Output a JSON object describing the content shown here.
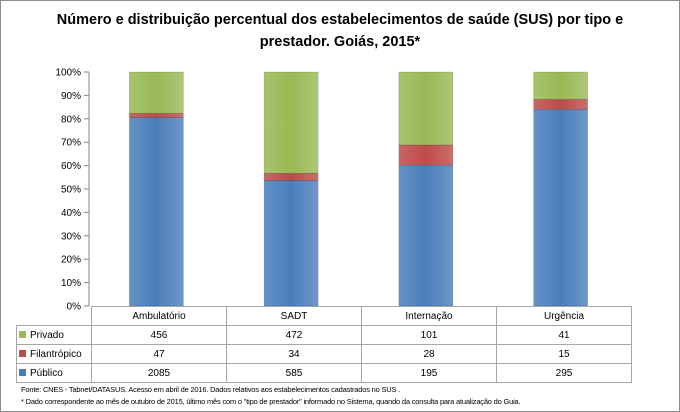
{
  "chart_data": {
    "type": "bar",
    "stacked": "percent",
    "title_line1": "Número e distribuição percentual dos estabelecimentos de saúde (SUS) por tipo e",
    "title_line2": "prestador. Goiás, 2015*",
    "categories": [
      "Ambulatório",
      "SADT",
      "Internação",
      "Urgência"
    ],
    "series": [
      {
        "name": "Público",
        "values": [
          2085,
          585,
          195,
          295
        ],
        "color": "#4a7ebb"
      },
      {
        "name": "Filantrópico",
        "values": [
          47,
          34,
          28,
          15
        ],
        "color": "#be4b48"
      },
      {
        "name": "Privado",
        "values": [
          456,
          472,
          101,
          41
        ],
        "color": "#98b954"
      }
    ],
    "table_order": [
      "Privado",
      "Filantrópico",
      "Público"
    ],
    "yticks": [
      "0%",
      "10%",
      "20%",
      "30%",
      "40%",
      "50%",
      "60%",
      "70%",
      "80%",
      "90%",
      "100%"
    ],
    "ylim": [
      0,
      100
    ],
    "grid": false,
    "legend": "data-table"
  },
  "footer": {
    "source": "Fonte: CNES - Tabnet/DATASUS. Acesso em abril de 2016.  Dados relativos aos estabelecimentos cadastrados no SUS .",
    "note": "* Dado correspondente ao mês de  outubro de 2015, último mês com o \"tipo de prestador\" informado no Sistema, quando da consulta para atualização do Guia."
  }
}
